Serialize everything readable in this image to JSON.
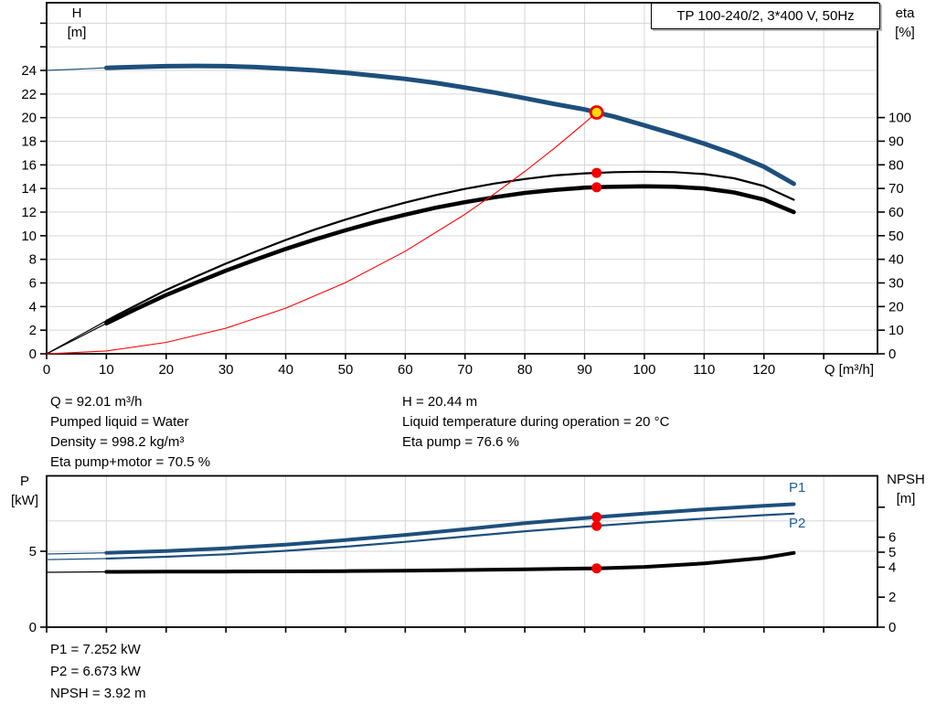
{
  "colors": {
    "curve_blue": "#1d4f7c",
    "curve_black": "#000000",
    "system_red": "#ff0000",
    "marker_red": "#f20000",
    "duty_fill": "#ffe000",
    "grid": "#d6d6d6",
    "axis": "#000000",
    "label_blue": "#1d5d96"
  },
  "stats": {
    "top_left": [
      "Q = 92.01 m³/h",
      "Pumped liquid = Water",
      "Density = 998.2 kg/m³",
      "Eta pump+motor = 70.5 %"
    ],
    "top_right": [
      "H = 20.44 m",
      "Liquid temperature during operation = 20 °C",
      "Eta pump = 76.6 %"
    ],
    "bottom": [
      "P1 = 7.252 kW",
      "P2 = 6.673 kW",
      "NPSH = 3.92 m"
    ]
  },
  "chart_data": [
    {
      "id": "qh-eta-chart",
      "type": "line",
      "title": "TP 100-240/2, 3*400 V, 50Hz",
      "x_axis": {
        "label": "Q [m³/h]",
        "min": 0,
        "max": 139,
        "ticks": [
          [
            0,
            "0"
          ],
          [
            10,
            "10"
          ],
          [
            20,
            "20"
          ],
          [
            30,
            "30"
          ],
          [
            40,
            "40"
          ],
          [
            50,
            "50"
          ],
          [
            60,
            "60"
          ],
          [
            70,
            "70"
          ],
          [
            80,
            "80"
          ],
          [
            90,
            "90"
          ],
          [
            100,
            "100"
          ],
          [
            110,
            "110"
          ],
          [
            120,
            "120"
          ],
          [
            130,
            ""
          ]
        ]
      },
      "left_axis": {
        "label_line1": "H",
        "label_line2": "[m]",
        "min": 0,
        "max": 29.7,
        "ticks": [
          [
            0,
            "0"
          ],
          [
            2,
            "2"
          ],
          [
            4,
            "4"
          ],
          [
            6,
            "6"
          ],
          [
            8,
            "8"
          ],
          [
            10,
            "10"
          ],
          [
            12,
            "12"
          ],
          [
            14,
            "14"
          ],
          [
            16,
            "16"
          ],
          [
            18,
            "18"
          ],
          [
            20,
            "20"
          ],
          [
            22,
            "22"
          ],
          [
            24,
            "24"
          ],
          [
            26,
            ""
          ],
          [
            28,
            ""
          ]
        ],
        "gridlines": [
          2,
          4,
          6,
          8,
          10,
          12,
          14,
          16,
          18,
          20,
          22,
          24,
          26,
          28
        ]
      },
      "right_axis": {
        "label_line1": "eta",
        "label_line2": "[%]",
        "min": 0,
        "max": 148,
        "ticks": [
          [
            0,
            "0"
          ],
          [
            10,
            "10"
          ],
          [
            20,
            "20"
          ],
          [
            30,
            "30"
          ],
          [
            40,
            "40"
          ],
          [
            50,
            "50"
          ],
          [
            60,
            "60"
          ],
          [
            70,
            "70"
          ],
          [
            80,
            "80"
          ],
          [
            90,
            "90"
          ],
          [
            100,
            "100"
          ]
        ],
        "gridlines": []
      },
      "series": [
        {
          "name": "head-curve",
          "axis": "left",
          "color": "#1d4f7c",
          "width": 5,
          "thin_until": 8.5,
          "points": [
            [
              0,
              24
            ],
            [
              5,
              24.1
            ],
            [
              10,
              24.22
            ],
            [
              15,
              24.3
            ],
            [
              20,
              24.36
            ],
            [
              25,
              24.38
            ],
            [
              30,
              24.36
            ],
            [
              35,
              24.28
            ],
            [
              40,
              24.15
            ],
            [
              45,
              24
            ],
            [
              50,
              23.8
            ],
            [
              55,
              23.55
            ],
            [
              60,
              23.28
            ],
            [
              65,
              22.95
            ],
            [
              70,
              22.55
            ],
            [
              75,
              22.12
            ],
            [
              80,
              21.65
            ],
            [
              85,
              21.15
            ],
            [
              90,
              20.7
            ],
            [
              92.01,
              20.44
            ],
            [
              95,
              20.08
            ],
            [
              100,
              19.35
            ],
            [
              105,
              18.6
            ],
            [
              110,
              17.8
            ],
            [
              115,
              16.9
            ],
            [
              120,
              15.85
            ],
            [
              125,
              14.4
            ]
          ]
        },
        {
          "name": "eta-pump-curve",
          "axis": "right",
          "color": "#000000",
          "width": 2.2,
          "thin_until": 8.5,
          "points": [
            [
              0,
              0
            ],
            [
              5,
              7
            ],
            [
              10,
              14
            ],
            [
              15,
              20.6
            ],
            [
              20,
              27
            ],
            [
              25,
              32.7
            ],
            [
              30,
              38.2
            ],
            [
              35,
              43.3
            ],
            [
              40,
              48.2
            ],
            [
              45,
              52.7
            ],
            [
              50,
              56.8
            ],
            [
              55,
              60.6
            ],
            [
              60,
              64
            ],
            [
              65,
              67.1
            ],
            [
              70,
              69.8
            ],
            [
              75,
              72.1
            ],
            [
              80,
              74
            ],
            [
              85,
              75.5
            ],
            [
              90,
              76.4
            ],
            [
              92.01,
              76.6
            ],
            [
              95,
              76.9
            ],
            [
              100,
              77.1
            ],
            [
              105,
              76.9
            ],
            [
              110,
              76.1
            ],
            [
              115,
              74.3
            ],
            [
              120,
              71
            ],
            [
              125,
              65.2
            ]
          ]
        },
        {
          "name": "eta-pump-motor-curve",
          "axis": "right",
          "color": "#000000",
          "width": 4.5,
          "thin_until": 8.5,
          "points": [
            [
              0,
              0
            ],
            [
              5,
              6.4
            ],
            [
              10,
              12.9
            ],
            [
              15,
              19
            ],
            [
              20,
              24.9
            ],
            [
              25,
              30.1
            ],
            [
              30,
              35.2
            ],
            [
              35,
              39.9
            ],
            [
              40,
              44.4
            ],
            [
              45,
              48.5
            ],
            [
              50,
              52.3
            ],
            [
              55,
              55.8
            ],
            [
              60,
              58.9
            ],
            [
              65,
              61.8
            ],
            [
              70,
              64.2
            ],
            [
              75,
              66.3
            ],
            [
              80,
              68.1
            ],
            [
              85,
              69.4
            ],
            [
              90,
              70.3
            ],
            [
              92.01,
              70.5
            ],
            [
              95,
              70.7
            ],
            [
              100,
              70.9
            ],
            [
              105,
              70.7
            ],
            [
              110,
              70
            ],
            [
              115,
              68.3
            ],
            [
              120,
              65.3
            ],
            [
              125,
              60
            ]
          ]
        },
        {
          "name": "system-curve",
          "axis": "left",
          "color": "#ff0000",
          "width": 1.1,
          "thin_until": 0,
          "points": [
            [
              0,
              0
            ],
            [
              10,
              0.24
            ],
            [
              20,
              0.97
            ],
            [
              30,
              2.17
            ],
            [
              40,
              3.86
            ],
            [
              50,
              6.03
            ],
            [
              60,
              8.69
            ],
            [
              70,
              11.82
            ],
            [
              75,
              13.58
            ],
            [
              80,
              15.45
            ],
            [
              85,
              17.44
            ],
            [
              90,
              19.55
            ],
            [
              92.01,
              20.44
            ]
          ]
        }
      ],
      "markers": [
        {
          "name": "duty-point",
          "axis": "left",
          "q": 92.01,
          "value": 20.44,
          "style": "duty"
        },
        {
          "name": "eta-pump-point",
          "axis": "right",
          "q": 92.01,
          "value": 76.6,
          "style": "dot"
        },
        {
          "name": "eta-pump-motor-point",
          "axis": "right",
          "q": 92.01,
          "value": 70.5,
          "style": "dot"
        }
      ]
    },
    {
      "id": "power-npsh-chart",
      "type": "line",
      "title": "",
      "x_axis": {
        "label": "",
        "min": 0,
        "max": 139,
        "ticks": [
          [
            0,
            ""
          ],
          [
            10,
            ""
          ],
          [
            20,
            ""
          ],
          [
            30,
            ""
          ],
          [
            40,
            ""
          ],
          [
            50,
            ""
          ],
          [
            60,
            ""
          ],
          [
            70,
            ""
          ],
          [
            80,
            ""
          ],
          [
            90,
            ""
          ],
          [
            100,
            ""
          ],
          [
            110,
            ""
          ],
          [
            120,
            ""
          ],
          [
            130,
            ""
          ]
        ]
      },
      "left_axis": {
        "label_line1": "P",
        "label_line2": "[kW]",
        "min": 0,
        "max": 10,
        "ticks": [
          [
            0,
            "0"
          ],
          [
            5,
            "5"
          ]
        ],
        "gridlines": [
          5,
          7
        ]
      },
      "right_axis": {
        "label_line1": "NPSH",
        "label_line2": "[m]",
        "min": 0,
        "max": 10.1,
        "ticks": [
          [
            0,
            "0"
          ],
          [
            2,
            "2"
          ],
          [
            4,
            "4"
          ],
          [
            5,
            "5"
          ],
          [
            6,
            "6"
          ],
          [
            8,
            ""
          ]
        ],
        "gridlines": []
      },
      "series": [
        {
          "name": "p1-curve",
          "axis": "left",
          "color": "#1d4f7c",
          "width": 4,
          "thin_until": 8.5,
          "inline_label": "P1",
          "points": [
            [
              0,
              4.82
            ],
            [
              10,
              4.9
            ],
            [
              20,
              5.02
            ],
            [
              30,
              5.2
            ],
            [
              40,
              5.44
            ],
            [
              50,
              5.74
            ],
            [
              60,
              6.08
            ],
            [
              70,
              6.45
            ],
            [
              80,
              6.85
            ],
            [
              92.01,
              7.252
            ],
            [
              100,
              7.48
            ],
            [
              110,
              7.76
            ],
            [
              120,
              8.0
            ],
            [
              125,
              8.1
            ]
          ]
        },
        {
          "name": "p2-curve",
          "axis": "left",
          "color": "#1d4f7c",
          "width": 2.2,
          "thin_until": 8.5,
          "inline_label": "P2",
          "points": [
            [
              0,
              4.45
            ],
            [
              10,
              4.52
            ],
            [
              20,
              4.64
            ],
            [
              30,
              4.8
            ],
            [
              40,
              5.03
            ],
            [
              50,
              5.3
            ],
            [
              60,
              5.62
            ],
            [
              70,
              5.97
            ],
            [
              80,
              6.32
            ],
            [
              92.01,
              6.673
            ],
            [
              100,
              6.9
            ],
            [
              110,
              7.15
            ],
            [
              120,
              7.38
            ],
            [
              125,
              7.48
            ]
          ]
        },
        {
          "name": "npsh-curve",
          "axis": "right",
          "color": "#000000",
          "width": 4,
          "thin_until": 8.5,
          "inline_label": "",
          "points": [
            [
              0,
              3.66
            ],
            [
              10,
              3.69
            ],
            [
              20,
              3.7
            ],
            [
              30,
              3.71
            ],
            [
              40,
              3.72
            ],
            [
              50,
              3.74
            ],
            [
              60,
              3.77
            ],
            [
              70,
              3.81
            ],
            [
              80,
              3.86
            ],
            [
              92.01,
              3.92
            ],
            [
              100,
              4.02
            ],
            [
              110,
              4.25
            ],
            [
              120,
              4.62
            ],
            [
              125,
              4.95
            ]
          ]
        }
      ],
      "markers": [
        {
          "name": "p1-point",
          "axis": "left",
          "q": 92.01,
          "value": 7.252,
          "style": "dot"
        },
        {
          "name": "p2-point",
          "axis": "left",
          "q": 92.01,
          "value": 6.673,
          "style": "dot"
        },
        {
          "name": "npsh-point",
          "axis": "right",
          "q": 92.01,
          "value": 3.92,
          "style": "dot"
        }
      ]
    }
  ]
}
